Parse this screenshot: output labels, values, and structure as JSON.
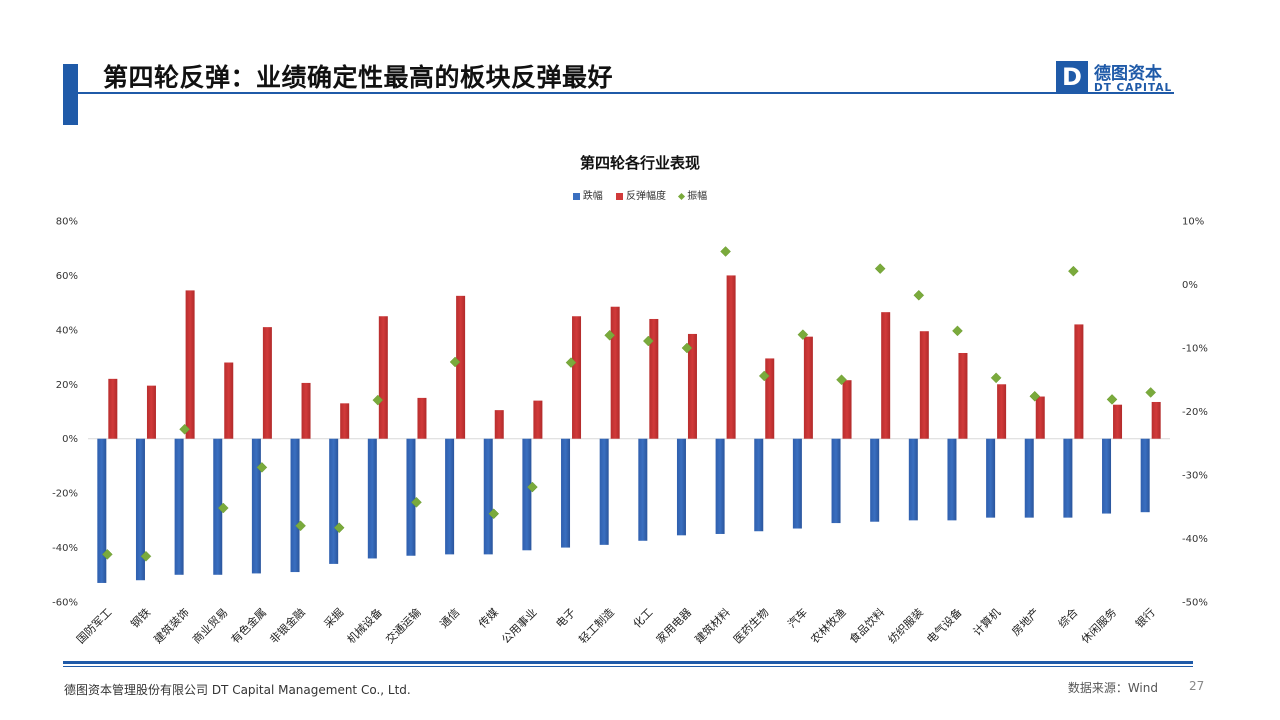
{
  "slide": {
    "title": "第四轮反弹：业绩确定性最高的板块反弹最好",
    "logo_cn": "德图资本",
    "logo_en": "DT CAPITAL",
    "logo_letter": "D",
    "footer_left": "德图资本管理股份有限公司  DT Capital Management  Co., Ltd.",
    "footer_right": "数据来源：Wind",
    "page_number": "27"
  },
  "colors": {
    "accent": "#1f5aa8",
    "fall": "#3a6fc0",
    "rebound": "#d13a3a",
    "amplitude": "#7aaa3c"
  },
  "chart_data": {
    "type": "bar",
    "title": "第四轮各行业表现",
    "legend": [
      "跌幅",
      "反弹幅度",
      "振幅"
    ],
    "legend_position": "top",
    "categories": [
      "国防军工",
      "钢铁",
      "建筑装饰",
      "商业贸易",
      "有色金属",
      "非银金融",
      "采掘",
      "机械设备",
      "交通运输",
      "通信",
      "传媒",
      "公用事业",
      "电子",
      "轻工制造",
      "化工",
      "家用电器",
      "建筑材料",
      "医药生物",
      "汽车",
      "农林牧渔",
      "食品饮料",
      "纺织服装",
      "电气设备",
      "计算机",
      "房地产",
      "综合",
      "休闲服务",
      "银行"
    ],
    "series": [
      {
        "name": "跌幅",
        "axis": "left",
        "kind": "bar",
        "values": [
          -53,
          -52,
          -50,
          -50,
          -49.5,
          -49,
          -46,
          -44,
          -43,
          -42.5,
          -42.5,
          -41,
          -40,
          -39,
          -37.5,
          -35.5,
          -35,
          -34,
          -33,
          -31,
          -30.5,
          -30,
          -30,
          -29,
          -29,
          -29,
          -27.5,
          -27
        ]
      },
      {
        "name": "反弹幅度",
        "axis": "left",
        "kind": "bar",
        "values": [
          22,
          19.5,
          54.5,
          28,
          41,
          20.5,
          13,
          45,
          15,
          52.5,
          10.5,
          14,
          45,
          48.5,
          44,
          38.5,
          60,
          29.5,
          37.5,
          21.5,
          46.5,
          39.5,
          31.5,
          20,
          15.5,
          42,
          12.5,
          13.5
        ]
      },
      {
        "name": "振幅",
        "axis": "right",
        "kind": "marker",
        "values": [
          -42.5,
          -42.8,
          -22.8,
          -35.2,
          -28.8,
          -38,
          -38.3,
          -18.2,
          -34.3,
          -12.2,
          -36.1,
          -31.9,
          -12.3,
          -8,
          -8.9,
          -10,
          5.2,
          -14.4,
          -7.9,
          -15,
          2.5,
          -1.7,
          -7.3,
          -14.7,
          -17.6,
          2.1,
          -18.1,
          -17
        ]
      }
    ],
    "left_axis": {
      "ylim": [
        -60,
        80
      ],
      "ticks": [
        "80%",
        "60%",
        "40%",
        "20%",
        "0%",
        "-20%",
        "-40%",
        "-60%"
      ]
    },
    "right_axis": {
      "ylim": [
        -50,
        10
      ],
      "ticks": [
        "10%",
        "0%",
        "-10%",
        "-20%",
        "-30%",
        "-40%",
        "-50%"
      ]
    },
    "grid": false
  }
}
